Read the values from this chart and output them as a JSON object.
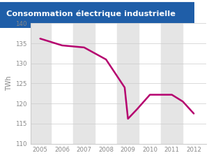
{
  "title": "Consommation électrique industrielle",
  "x_data": [
    2005,
    2006,
    2007,
    2008,
    2008.85,
    2009,
    2009.4,
    2010,
    2011,
    2011.5,
    2012
  ],
  "y_data": [
    136.2,
    134.5,
    134.0,
    131.0,
    124.0,
    116.2,
    118.5,
    122.2,
    122.2,
    120.5,
    117.5
  ],
  "ylim": [
    110,
    140
  ],
  "xlim": [
    2004.55,
    2012.55
  ],
  "yticks": [
    110,
    115,
    120,
    125,
    130,
    135,
    140
  ],
  "xticks": [
    2005,
    2006,
    2007,
    2008,
    2009,
    2010,
    2011,
    2012
  ],
  "ylabel": "TWh",
  "line_color": "#b5006e",
  "title_bg_color": "#1f5ea8",
  "title_shadow_color": "#6688bb",
  "title_text_color": "#ffffff",
  "bg_color": "#ffffff",
  "plot_bg_color": "#ffffff",
  "stripe_color": "#e5e5e5",
  "grid_color": "#cccccc",
  "tick_color": "#888888",
  "spine_color": "#cccccc",
  "stripe_years": [
    2005,
    2007,
    2009,
    2011
  ]
}
